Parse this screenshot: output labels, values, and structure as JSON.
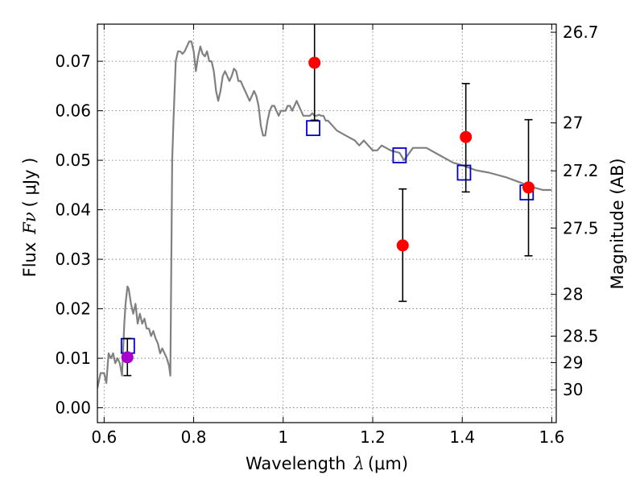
{
  "chart_data": {
    "type": "scatter",
    "xlabel_text": "Wavelength",
    "xlabel_symbol": "λ",
    "xlabel_unit": "(μm)",
    "ylabel_text": "Flux",
    "ylabel_symbol": "Fν",
    "ylabel_unit": "( μJy )",
    "y2label": "Magnitude (AB)",
    "xlim": [
      0.585,
      1.61
    ],
    "ylim": [
      -0.003,
      0.0775
    ],
    "grid": true,
    "x_ticks": [
      0.6,
      0.8,
      1.0,
      1.2,
      1.4,
      1.6
    ],
    "x_tick_labels": [
      "0.6",
      "0.8",
      "1",
      "1.2",
      "1.4",
      "1.6"
    ],
    "y_ticks": [
      0.0,
      0.01,
      0.02,
      0.03,
      0.04,
      0.05,
      0.06,
      0.07
    ],
    "y_tick_labels": [
      "0.00",
      "0.01",
      "0.02",
      "0.03",
      "0.04",
      "0.05",
      "0.06",
      "0.07"
    ],
    "mag_ticks": [
      26.7,
      27,
      27.2,
      27.5,
      28,
      28.5,
      29,
      30
    ],
    "mag_tick_labels": [
      "26.7",
      "27",
      "27.2",
      "27.5",
      "28",
      "28.5",
      "29",
      "30"
    ],
    "series": [
      {
        "kind": "line",
        "color": "#808080",
        "x": [
          0.585,
          0.592,
          0.6,
          0.605,
          0.61,
          0.615,
          0.62,
          0.625,
          0.63,
          0.635,
          0.64,
          0.645,
          0.648,
          0.652,
          0.655,
          0.66,
          0.665,
          0.67,
          0.675,
          0.68,
          0.685,
          0.69,
          0.695,
          0.7,
          0.705,
          0.71,
          0.715,
          0.72,
          0.725,
          0.73,
          0.735,
          0.74,
          0.745,
          0.748,
          0.752,
          0.755,
          0.76,
          0.765,
          0.77,
          0.775,
          0.78,
          0.785,
          0.79,
          0.795,
          0.8,
          0.805,
          0.81,
          0.815,
          0.82,
          0.825,
          0.83,
          0.835,
          0.84,
          0.845,
          0.85,
          0.855,
          0.86,
          0.865,
          0.87,
          0.875,
          0.88,
          0.885,
          0.89,
          0.895,
          0.9,
          0.905,
          0.91,
          0.915,
          0.92,
          0.925,
          0.93,
          0.935,
          0.94,
          0.945,
          0.95,
          0.955,
          0.96,
          0.965,
          0.97,
          0.975,
          0.98,
          0.985,
          0.99,
          0.995,
          1.0,
          1.005,
          1.01,
          1.015,
          1.02,
          1.025,
          1.03,
          1.035,
          1.04,
          1.045,
          1.05,
          1.055,
          1.06,
          1.065,
          1.07,
          1.075,
          1.08,
          1.085,
          1.09,
          1.095,
          1.1,
          1.12,
          1.14,
          1.16,
          1.17,
          1.18,
          1.2,
          1.21,
          1.22,
          1.24,
          1.26,
          1.27,
          1.29,
          1.32,
          1.35,
          1.38,
          1.4,
          1.43,
          1.46,
          1.5,
          1.53,
          1.56,
          1.58,
          1.6
        ],
        "y": [
          0.004,
          0.007,
          0.007,
          0.005,
          0.011,
          0.01,
          0.011,
          0.009,
          0.01,
          0.009,
          0.0065,
          0.017,
          0.021,
          0.0245,
          0.024,
          0.021,
          0.019,
          0.021,
          0.017,
          0.019,
          0.017,
          0.018,
          0.016,
          0.016,
          0.0145,
          0.0155,
          0.014,
          0.013,
          0.011,
          0.012,
          0.011,
          0.01,
          0.0085,
          0.0065,
          0.05,
          0.058,
          0.07,
          0.072,
          0.072,
          0.0715,
          0.072,
          0.073,
          0.074,
          0.074,
          0.072,
          0.068,
          0.071,
          0.073,
          0.0715,
          0.071,
          0.072,
          0.07,
          0.07,
          0.068,
          0.064,
          0.062,
          0.064,
          0.067,
          0.068,
          0.067,
          0.066,
          0.067,
          0.0685,
          0.068,
          0.066,
          0.066,
          0.065,
          0.064,
          0.063,
          0.062,
          0.063,
          0.064,
          0.063,
          0.061,
          0.057,
          0.055,
          0.055,
          0.058,
          0.06,
          0.061,
          0.061,
          0.06,
          0.059,
          0.06,
          0.06,
          0.06,
          0.061,
          0.061,
          0.06,
          0.061,
          0.062,
          0.061,
          0.06,
          0.059,
          0.059,
          0.059,
          0.059,
          0.0595,
          0.059,
          0.059,
          0.0592,
          0.059,
          0.059,
          0.058,
          0.058,
          0.056,
          0.055,
          0.054,
          0.053,
          0.054,
          0.052,
          0.052,
          0.053,
          0.052,
          0.0515,
          0.05,
          0.0525,
          0.0525,
          0.051,
          0.0495,
          0.049,
          0.048,
          0.0475,
          0.0465,
          0.0455,
          0.0445,
          0.044,
          0.044
        ]
      },
      {
        "kind": "open-squares",
        "color": "#0000cc",
        "x": [
          0.653,
          1.067,
          1.26,
          1.404,
          1.544
        ],
        "y": [
          0.0125,
          0.0565,
          0.051,
          0.0475,
          0.0435
        ]
      },
      {
        "kind": "filled-circles",
        "color": "#ff0000",
        "x": [
          1.07,
          1.267,
          1.408,
          1.548
        ],
        "y": [
          0.0697,
          0.0328,
          0.0547,
          0.0445
        ],
        "yerr_low": [
          0.0116,
          0.0113,
          0.0111,
          0.0138
        ],
        "yerr_high": [
          0.0082,
          0.0114,
          0.0108,
          0.0137
        ]
      },
      {
        "kind": "filled-circles",
        "color": "#aa00cc",
        "x": [
          0.652
        ],
        "y": [
          0.0102
        ],
        "yerr_low": [
          0.0037
        ],
        "yerr_high": [
          0.0038
        ]
      }
    ]
  }
}
